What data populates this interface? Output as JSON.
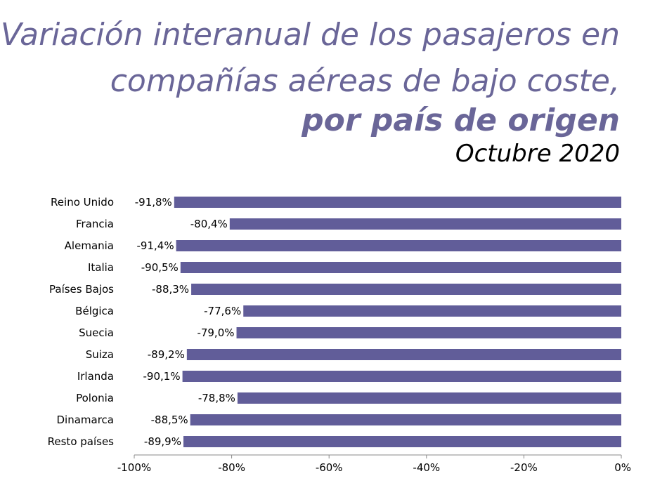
{
  "title": {
    "line1": "Variación interanual de los pasajeros en",
    "line2": "compañías aéreas de bajo coste,",
    "line3": "por país de origen",
    "subtitle": "Octubre 2020"
  },
  "colors": {
    "bar": "#615d99",
    "title": "#6a6698",
    "axis": "#888888"
  },
  "chart_data": {
    "type": "bar",
    "orientation": "horizontal",
    "title": "Variación interanual de los pasajeros en compañías aéreas de bajo coste, por país de origen",
    "subtitle": "Octubre 2020",
    "categories": [
      "Reino Unido",
      "Francia",
      "Alemania",
      "Italia",
      "Países Bajos",
      "Bélgica",
      "Suecia",
      "Suiza",
      "Irlanda",
      "Polonia",
      "Dinamarca",
      "Resto países"
    ],
    "values": [
      -91.8,
      -80.4,
      -91.4,
      -90.5,
      -88.3,
      -77.6,
      -79.0,
      -89.2,
      -90.1,
      -78.8,
      -88.5,
      -89.9
    ],
    "value_labels": [
      "-91,8%",
      "-80,4%",
      "-91,4%",
      "-90,5%",
      "-88,3%",
      "-77,6%",
      "-79,0%",
      "-89,2%",
      "-90,1%",
      "-78,8%",
      "-88,5%",
      "-89,9%"
    ],
    "xlim": [
      -100,
      0
    ],
    "xticks": [
      -100,
      -80,
      -60,
      -40,
      -20,
      0
    ],
    "xtick_labels": [
      "-100%",
      "-80%",
      "-60%",
      "-40%",
      "-20%",
      "0%"
    ],
    "grid": false,
    "legend": "none"
  }
}
